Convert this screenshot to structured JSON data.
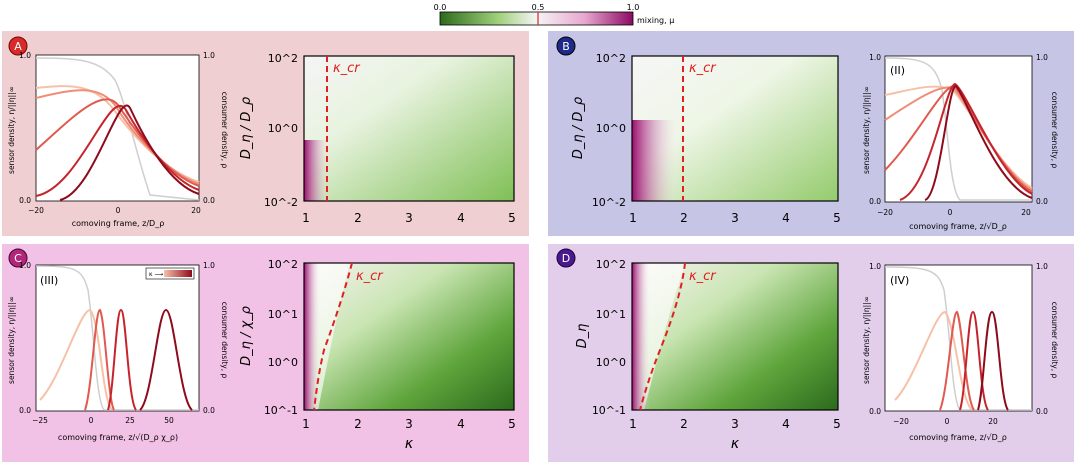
{
  "colorbar": {
    "tick_0": "0.0",
    "tick_1": "0.5",
    "tick_2": "1.0",
    "label": "mixing, μ",
    "colors": [
      "#2d6a1e",
      "#9fd07a",
      "#f5f5f5",
      "#e7a7cf",
      "#8b0a63"
    ],
    "marker_color": "#e02020"
  },
  "panels": [
    {
      "id": "A",
      "badge_color": "#d52b2b",
      "bg": "#f0cfd2",
      "left_plot": {
        "ylabel_left": "sensor density, η/||η||∞",
        "ylabel_right": "consumer density, ρ",
        "xlabel": "comoving frame, z/D_ρ",
        "xticks": [
          "−20",
          "0",
          "20"
        ],
        "yticks_left": [
          "1.0",
          "0.0"
        ],
        "yticks_right": [
          "1.0",
          "0.0"
        ],
        "roman": ""
      },
      "heatmap": {
        "ylabel": "D_η / D_ρ",
        "xlabel": "",
        "yticks": [
          "10^2",
          "10^0",
          "10^-2"
        ],
        "xticks": [
          "1",
          "2",
          "3",
          "4",
          "5"
        ],
        "critical_label": "κ_cr",
        "critical_kappa": 1.45
      }
    },
    {
      "id": "B",
      "badge_color": "#1d2a8a",
      "bg": "#c6c5e6",
      "left_plot": {
        "ylabel_left": "sensor density, η/||η||∞",
        "ylabel_right": "consumer density, ρ",
        "xlabel": "comoving frame, z/√D_ρ",
        "xticks": [
          "−20",
          "0",
          "20"
        ],
        "yticks_left": [
          "1.0",
          "0.0"
        ],
        "yticks_right": [
          "1.0",
          "0.0"
        ],
        "roman": "(II)"
      },
      "heatmap": {
        "ylabel": "D_η / D_ρ",
        "xlabel": "",
        "yticks": [
          "10^2",
          "10^0",
          "10^-2"
        ],
        "xticks": [
          "1",
          "2",
          "3",
          "4",
          "5"
        ],
        "critical_label": "κ_cr",
        "critical_kappa": 2.0
      }
    },
    {
      "id": "C",
      "badge_color": "#b0267a",
      "bg": "#f2c1e6",
      "left_plot": {
        "ylabel_left": "sensor density, η/||η||∞",
        "ylabel_right": "consumer density, ρ",
        "xlabel": "comoving frame, z/√(D_ρ χ_ρ)",
        "xticks": [
          "−25",
          "0",
          "25",
          "50"
        ],
        "yticks_left": [
          "1.0",
          "0.0"
        ],
        "yticks_right": [
          "1.0",
          "0.0"
        ],
        "roman": "(III)",
        "legend_label": "κ ⟶"
      },
      "heatmap": {
        "ylabel": "D_η / χ_ρ",
        "xlabel": "κ",
        "yticks": [
          "10^2",
          "10^1",
          "10^0",
          "10^-1"
        ],
        "xticks": [
          "1",
          "2",
          "3",
          "4",
          "5"
        ],
        "critical_label": "κ_cr"
      }
    },
    {
      "id": "D",
      "badge_color": "#4a1a8c",
      "bg": "#e2cdea",
      "left_plot": {
        "ylabel_left": "sensor density, η/||η||∞",
        "ylabel_right": "consumer density, ρ",
        "xlabel": "comoving frame, z/√D_ρ",
        "xticks": [
          "−20",
          "0",
          "20"
        ],
        "yticks_left": [
          "1.0",
          "0.0"
        ],
        "yticks_right": [
          "1.0",
          "0.0"
        ],
        "roman": "(IV)"
      },
      "heatmap": {
        "ylabel": "D_η",
        "xlabel": "κ",
        "yticks": [
          "10^2",
          "10^1",
          "10^0",
          "10^-1"
        ],
        "xticks": [
          "1",
          "2",
          "3",
          "4",
          "5"
        ],
        "critical_label": "κ_cr"
      }
    }
  ],
  "curve_colors": [
    "#f7c1a8",
    "#f08d78",
    "#e05a4f",
    "#c4252d",
    "#8e0b1c"
  ]
}
